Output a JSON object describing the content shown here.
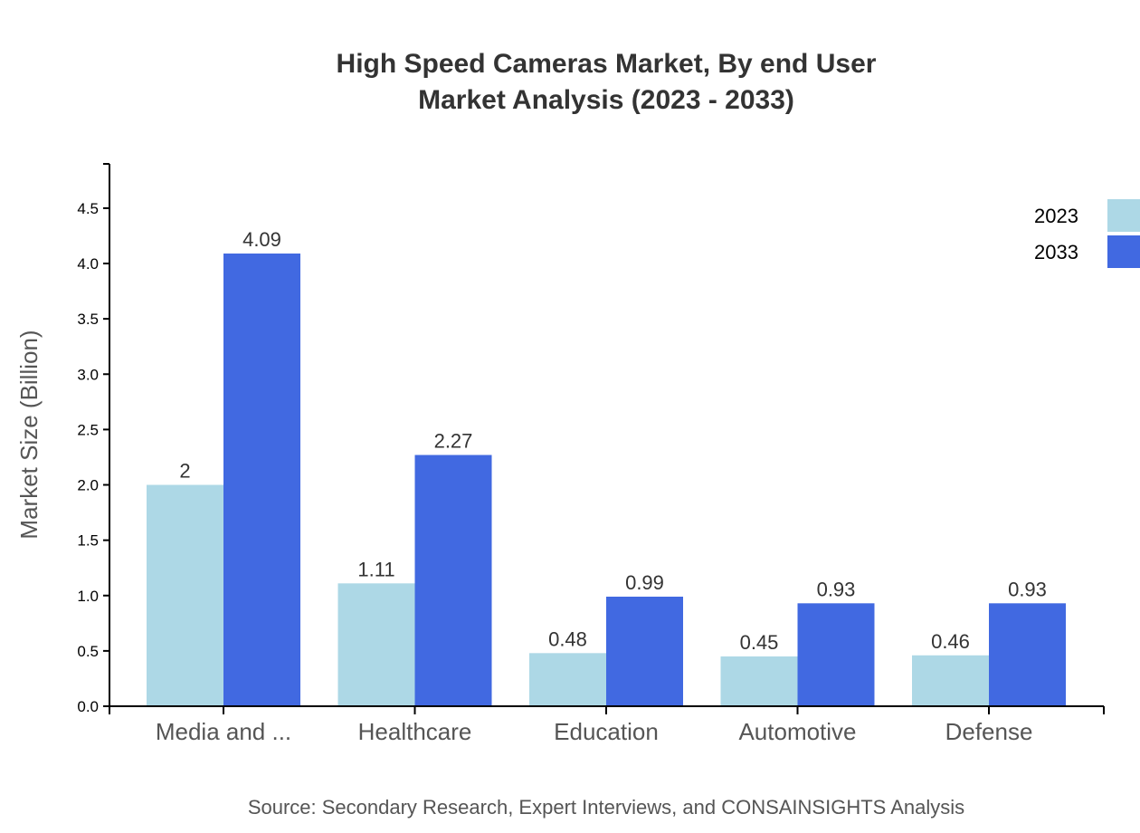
{
  "chart_data": {
    "type": "bar",
    "title": [
      "High Speed Cameras Market, By end User",
      "Market Analysis (2023 - 2033)"
    ],
    "xlabel": "",
    "ylabel": "Market Size (Billion)",
    "ylim": [
      0,
      4.9
    ],
    "yticks": [
      "0.0",
      "0.5",
      "1.0",
      "1.5",
      "2.0",
      "2.5",
      "3.0",
      "3.5",
      "4.0",
      "4.5"
    ],
    "categories": [
      "Media and ...",
      "Healthcare",
      "Education",
      "Automotive",
      "Defense"
    ],
    "series": [
      {
        "name": "2023",
        "color": "#add8e6",
        "values": [
          2,
          1.11,
          0.48,
          0.45,
          0.46
        ]
      },
      {
        "name": "2033",
        "color": "#4169e1",
        "values": [
          4.09,
          2.27,
          0.99,
          0.93,
          0.93
        ]
      }
    ],
    "grid": false,
    "legend": "top-right",
    "source": "Source: Secondary Research, Expert Interviews, and CONSAINSIGHTS Analysis"
  }
}
